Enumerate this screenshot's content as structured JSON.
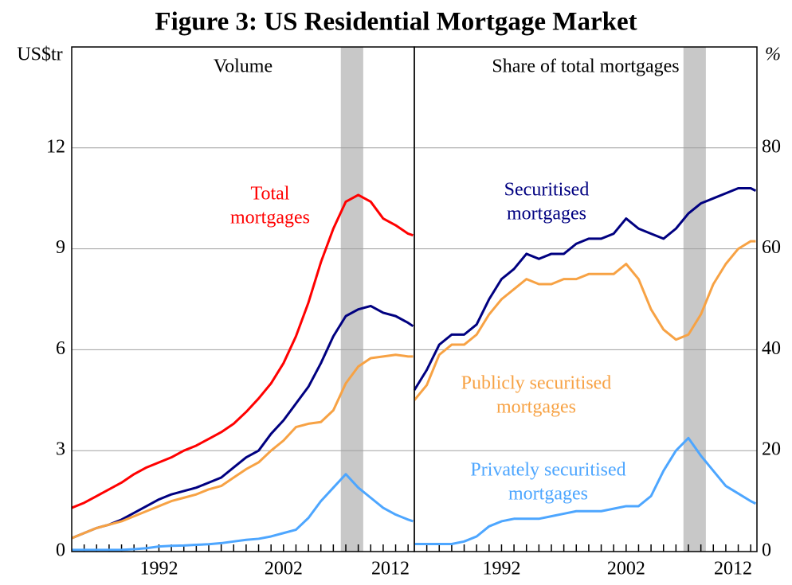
{
  "title": "Figure 3: US Residential Mortgage Market",
  "chart_data": [
    {
      "type": "line",
      "panel_title": "Volume",
      "y_label": "US$tr",
      "y_axis_side": "left",
      "x": [
        1985,
        1986,
        1987,
        1988,
        1989,
        1990,
        1991,
        1992,
        1993,
        1994,
        1995,
        1996,
        1997,
        1998,
        1999,
        2000,
        2001,
        2002,
        2003,
        2004,
        2005,
        2006,
        2007,
        2008,
        2009,
        2010,
        2011,
        2012,
        2012.4
      ],
      "xlim": [
        1985,
        2012.5
      ],
      "xticks": [
        1992,
        2002,
        2012
      ],
      "minor_xticks": [
        1986,
        1987,
        1988,
        1989,
        1990,
        1991,
        1993,
        1994,
        1995,
        1996,
        1997,
        1998,
        1999,
        2000,
        2001,
        2003,
        2004,
        2005,
        2006,
        2007,
        2008,
        2009,
        2010,
        2011
      ],
      "ylim": [
        0,
        15
      ],
      "yticks": [
        0,
        3,
        6,
        9,
        12
      ],
      "grid": true,
      "shaded_period": [
        2006.6,
        2008.4
      ],
      "series": [
        {
          "label": [
            "Total",
            "mortgages"
          ],
          "color": "#ff0000",
          "values": [
            1.3,
            1.45,
            1.65,
            1.85,
            2.05,
            2.3,
            2.5,
            2.65,
            2.8,
            3.0,
            3.15,
            3.35,
            3.55,
            3.8,
            4.15,
            4.55,
            5.0,
            5.6,
            6.4,
            7.4,
            8.6,
            9.6,
            10.4,
            10.6,
            10.4,
            9.9,
            9.7,
            9.45,
            9.4
          ]
        },
        {
          "color": "#000080",
          "values": [
            0.4,
            0.55,
            0.7,
            0.8,
            0.95,
            1.15,
            1.35,
            1.55,
            1.7,
            1.8,
            1.9,
            2.05,
            2.2,
            2.5,
            2.8,
            3.0,
            3.5,
            3.9,
            4.4,
            4.9,
            5.6,
            6.4,
            7.0,
            7.2,
            7.3,
            7.1,
            7.0,
            6.8,
            6.7
          ]
        },
        {
          "color": "#f7a244",
          "values": [
            0.4,
            0.55,
            0.7,
            0.8,
            0.9,
            1.05,
            1.2,
            1.35,
            1.5,
            1.6,
            1.7,
            1.85,
            1.95,
            2.2,
            2.45,
            2.65,
            3.0,
            3.3,
            3.7,
            3.8,
            3.85,
            4.2,
            5.0,
            5.5,
            5.75,
            5.8,
            5.85,
            5.8,
            5.8
          ]
        },
        {
          "color": "#4da6ff",
          "values": [
            0.05,
            0.05,
            0.05,
            0.05,
            0.05,
            0.07,
            0.1,
            0.15,
            0.17,
            0.18,
            0.2,
            0.22,
            0.25,
            0.3,
            0.35,
            0.38,
            0.45,
            0.55,
            0.65,
            1.0,
            1.5,
            1.9,
            2.3,
            1.9,
            1.6,
            1.3,
            1.1,
            0.95,
            0.9
          ]
        }
      ]
    },
    {
      "type": "line",
      "panel_title": "Share of total mortgages",
      "y_label": "%",
      "y_axis_side": "right",
      "x": [
        1985,
        1986,
        1987,
        1988,
        1989,
        1990,
        1991,
        1992,
        1993,
        1994,
        1995,
        1996,
        1997,
        1998,
        1999,
        2000,
        2001,
        2002,
        2003,
        2004,
        2005,
        2006,
        2007,
        2008,
        2009,
        2010,
        2011,
        2012,
        2012.4
      ],
      "xlim": [
        1985,
        2012.5
      ],
      "xticks": [
        1992,
        2002,
        2012
      ],
      "minor_xticks": [
        1986,
        1987,
        1988,
        1989,
        1990,
        1991,
        1993,
        1994,
        1995,
        1996,
        1997,
        1998,
        1999,
        2000,
        2001,
        2003,
        2004,
        2005,
        2006,
        2007,
        2008,
        2009,
        2010,
        2011
      ],
      "ylim": [
        0,
        100
      ],
      "yticks": [
        0,
        20,
        40,
        60,
        80
      ],
      "grid": true,
      "shaded_period": [
        2006.6,
        2008.4
      ],
      "series": [
        {
          "label": [
            "Securitised",
            "mortgages"
          ],
          "color": "#000080",
          "values": [
            32,
            36,
            41,
            43,
            43,
            45,
            50,
            54,
            56,
            59,
            58,
            59,
            59,
            61,
            62,
            62,
            63,
            66,
            64,
            63,
            62,
            64,
            67,
            69,
            70,
            71,
            72,
            72,
            71.5
          ]
        },
        {
          "label": [
            "Publicly securitised",
            "mortgages"
          ],
          "color": "#f7a244",
          "values": [
            30,
            33,
            39,
            41,
            41,
            43,
            47,
            50,
            52,
            54,
            53,
            53,
            54,
            54,
            55,
            55,
            55,
            57,
            54,
            48,
            44,
            42,
            43,
            47,
            53,
            57,
            60,
            61.5,
            61.5
          ]
        },
        {
          "label": [
            "Privately securitised",
            "mortgages"
          ],
          "color": "#4da6ff",
          "values": [
            1.5,
            1.5,
            1.5,
            1.5,
            2,
            3,
            5,
            6,
            6.5,
            6.5,
            6.5,
            7,
            7.5,
            8,
            8,
            8,
            8.5,
            9,
            9,
            11,
            16,
            20,
            22.5,
            19,
            16,
            13,
            11.5,
            10,
            9.5
          ]
        }
      ]
    }
  ]
}
